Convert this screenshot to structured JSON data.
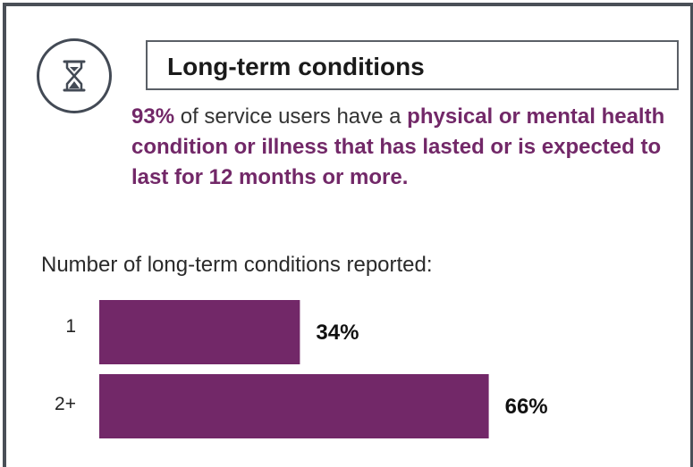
{
  "header": {
    "title": "Long-term conditions",
    "icon": "hourglass-icon"
  },
  "stat": {
    "highlight_value": "93%",
    "text_plain": " of service users have a ",
    "text_bold": "physical or mental health condition or illness that has lasted or is expected to last for 12 months or more."
  },
  "chart_heading": "Number of long-term conditions reported:",
  "colors": {
    "accent": "#722868",
    "frame": "#4a4f57"
  },
  "chart_data": {
    "type": "bar",
    "orientation": "horizontal",
    "categories": [
      "1",
      "2+"
    ],
    "values": [
      34,
      66
    ],
    "value_labels": [
      "34%",
      "66%"
    ],
    "title": "",
    "xlabel": "",
    "ylabel": "",
    "xlim": [
      0,
      100
    ],
    "grid": false,
    "legend": "none"
  }
}
